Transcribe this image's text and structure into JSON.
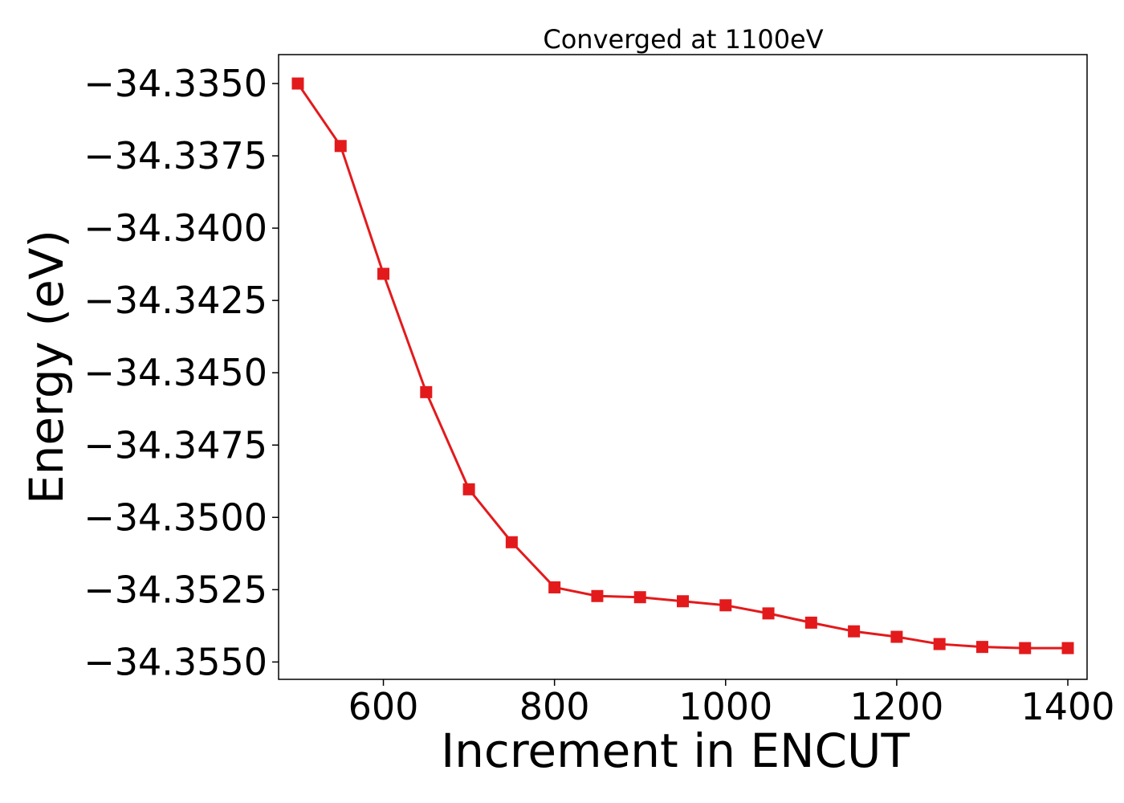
{
  "chart_data": {
    "type": "line",
    "title": "Converged at 1100eV",
    "xlabel": "Increment in ENCUT",
    "ylabel": "Energy (eV)",
    "xlim": [
      477.5,
      1422.5
    ],
    "ylim": [
      -34.3556,
      -34.334
    ],
    "xticks": [
      600,
      800,
      1000,
      1200,
      1400
    ],
    "yticks": [
      -34.335,
      -34.3375,
      -34.34,
      -34.3425,
      -34.345,
      -34.3475,
      -34.35,
      -34.3525,
      -34.355
    ],
    "xtick_labels": [
      "600",
      "800",
      "1000",
      "1200",
      "1400"
    ],
    "ytick_labels": [
      "−34.3350",
      "−34.3375",
      "−34.3400",
      "−34.3425",
      "−34.3450",
      "−34.3475",
      "−34.3500",
      "−34.3525",
      "−34.3550"
    ],
    "grid": false,
    "marker": "square",
    "color": "#e31a1c",
    "x": [
      500,
      550,
      600,
      650,
      700,
      750,
      800,
      850,
      900,
      950,
      1000,
      1050,
      1100,
      1150,
      1200,
      1250,
      1300,
      1350,
      1400
    ],
    "y": [
      -34.335,
      -34.33716,
      -34.34158,
      -34.34567,
      -34.34903,
      -34.35086,
      -34.35242,
      -34.35272,
      -34.35276,
      -34.3529,
      -34.35304,
      -34.35332,
      -34.35364,
      -34.35394,
      -34.35413,
      -34.35438,
      -34.35448,
      -34.35452,
      -34.35452
    ]
  }
}
